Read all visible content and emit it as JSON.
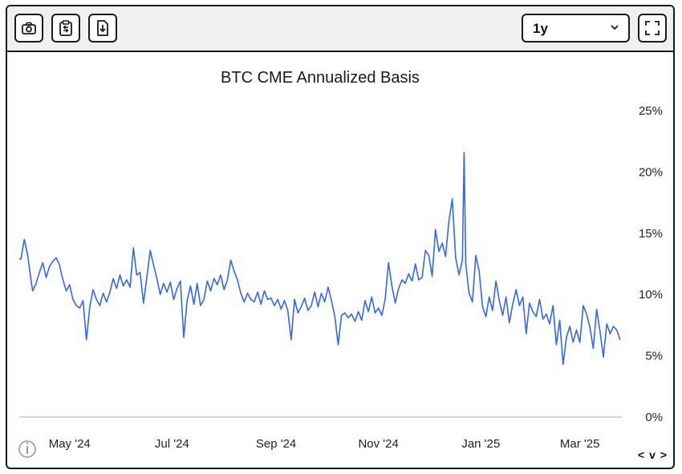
{
  "toolbar": {
    "screenshot_icon": "camera-icon",
    "copy_icon": "clipboard-icon",
    "download_icon": "file-download-icon",
    "range_value": "1y",
    "fullscreen_icon": "fullscreen-icon"
  },
  "nav": {
    "prev": "<",
    "down": "v",
    "next": ">"
  },
  "colors": {
    "line": "#3366ff",
    "axis": "#bdbdbd",
    "text": "#222222"
  },
  "chart_data": {
    "type": "line",
    "title": "BTC CME Annualized Basis",
    "xlabel": "",
    "ylabel": "",
    "x_ticks": [
      "May '24",
      "Jul '24",
      "Sep '24",
      "Nov '24",
      "Jan '25",
      "Mar '25"
    ],
    "y_ticks": [
      "25%",
      "20%",
      "15%",
      "10%",
      "5%",
      "0%"
    ],
    "ylim": [
      0,
      25
    ],
    "xlim": [
      "2024-04-01",
      "2025-03-26"
    ],
    "grid": false,
    "legend": "none",
    "y_axis_side": "right",
    "series": [
      {
        "values": [
          [
            "2024-04-01",
            12.9
          ],
          [
            "2024-04-02",
            12.9
          ],
          [
            "2024-04-04",
            14.5
          ],
          [
            "2024-04-06",
            13.2
          ],
          [
            "2024-04-08",
            11.2
          ],
          [
            "2024-04-09",
            10.3
          ],
          [
            "2024-04-11",
            10.9
          ],
          [
            "2024-04-13",
            11.8
          ],
          [
            "2024-04-15",
            12.6
          ],
          [
            "2024-04-17",
            11.4
          ],
          [
            "2024-04-19",
            12.3
          ],
          [
            "2024-04-21",
            12.7
          ],
          [
            "2024-04-23",
            13.0
          ],
          [
            "2024-04-25",
            12.4
          ],
          [
            "2024-04-27",
            11.2
          ],
          [
            "2024-04-29",
            10.3
          ],
          [
            "2024-05-01",
            10.8
          ],
          [
            "2024-05-03",
            9.6
          ],
          [
            "2024-05-05",
            9.1
          ],
          [
            "2024-05-07",
            8.9
          ],
          [
            "2024-05-09",
            9.5
          ],
          [
            "2024-05-11",
            6.3
          ],
          [
            "2024-05-13",
            9.0
          ],
          [
            "2024-05-15",
            10.4
          ],
          [
            "2024-05-17",
            9.6
          ],
          [
            "2024-05-19",
            9.1
          ],
          [
            "2024-05-21",
            10.1
          ],
          [
            "2024-05-23",
            9.4
          ],
          [
            "2024-05-25",
            10.2
          ],
          [
            "2024-05-27",
            11.3
          ],
          [
            "2024-05-29",
            10.5
          ],
          [
            "2024-05-31",
            11.6
          ],
          [
            "2024-06-02",
            10.7
          ],
          [
            "2024-06-04",
            11.2
          ],
          [
            "2024-06-06",
            10.6
          ],
          [
            "2024-06-08",
            13.8
          ],
          [
            "2024-06-10",
            11.6
          ],
          [
            "2024-06-12",
            11.8
          ],
          [
            "2024-06-14",
            9.3
          ],
          [
            "2024-06-16",
            11.4
          ],
          [
            "2024-06-18",
            13.6
          ],
          [
            "2024-06-20",
            12.4
          ],
          [
            "2024-06-22",
            11.3
          ],
          [
            "2024-06-24",
            10.0
          ],
          [
            "2024-06-26",
            10.9
          ],
          [
            "2024-06-28",
            10.2
          ],
          [
            "2024-06-30",
            11.0
          ],
          [
            "2024-07-02",
            9.6
          ],
          [
            "2024-07-04",
            10.5
          ],
          [
            "2024-07-06",
            11.1
          ],
          [
            "2024-07-08",
            6.5
          ],
          [
            "2024-07-10",
            9.5
          ],
          [
            "2024-07-12",
            10.7
          ],
          [
            "2024-07-14",
            9.2
          ],
          [
            "2024-07-16",
            10.9
          ],
          [
            "2024-07-18",
            9.1
          ],
          [
            "2024-07-20",
            9.6
          ],
          [
            "2024-07-22",
            11.1
          ],
          [
            "2024-07-24",
            10.3
          ],
          [
            "2024-07-26",
            11.3
          ],
          [
            "2024-07-28",
            10.8
          ],
          [
            "2024-07-30",
            11.6
          ],
          [
            "2024-08-01",
            10.4
          ],
          [
            "2024-08-03",
            11.2
          ],
          [
            "2024-08-05",
            12.8
          ],
          [
            "2024-08-07",
            11.9
          ],
          [
            "2024-08-09",
            11.2
          ],
          [
            "2024-08-11",
            10.1
          ],
          [
            "2024-08-13",
            9.4
          ],
          [
            "2024-08-15",
            10.1
          ],
          [
            "2024-08-17",
            9.6
          ],
          [
            "2024-08-19",
            9.4
          ],
          [
            "2024-08-21",
            10.2
          ],
          [
            "2024-08-23",
            9.2
          ],
          [
            "2024-08-25",
            10.3
          ],
          [
            "2024-08-27",
            9.6
          ],
          [
            "2024-08-29",
            9.7
          ],
          [
            "2024-08-31",
            9.1
          ],
          [
            "2024-09-02",
            9.6
          ],
          [
            "2024-09-04",
            8.8
          ],
          [
            "2024-09-06",
            9.5
          ],
          [
            "2024-09-08",
            8.7
          ],
          [
            "2024-09-10",
            6.3
          ],
          [
            "2024-09-12",
            9.6
          ],
          [
            "2024-09-14",
            8.5
          ],
          [
            "2024-09-16",
            9.0
          ],
          [
            "2024-09-18",
            9.7
          ],
          [
            "2024-09-20",
            8.7
          ],
          [
            "2024-09-22",
            9.1
          ],
          [
            "2024-09-24",
            10.2
          ],
          [
            "2024-09-26",
            9.0
          ],
          [
            "2024-09-28",
            10.1
          ],
          [
            "2024-09-30",
            9.4
          ],
          [
            "2024-10-02",
            10.6
          ],
          [
            "2024-10-04",
            9.5
          ],
          [
            "2024-10-06",
            8.2
          ],
          [
            "2024-10-08",
            5.9
          ],
          [
            "2024-10-10",
            8.3
          ],
          [
            "2024-10-12",
            8.5
          ],
          [
            "2024-10-14",
            8.1
          ],
          [
            "2024-10-16",
            8.4
          ],
          [
            "2024-10-18",
            7.8
          ],
          [
            "2024-10-20",
            8.6
          ],
          [
            "2024-10-22",
            7.9
          ],
          [
            "2024-10-24",
            9.5
          ],
          [
            "2024-10-26",
            8.6
          ],
          [
            "2024-10-28",
            9.8
          ],
          [
            "2024-10-30",
            8.5
          ],
          [
            "2024-11-01",
            8.9
          ],
          [
            "2024-11-03",
            8.3
          ],
          [
            "2024-11-05",
            9.6
          ],
          [
            "2024-11-07",
            12.6
          ],
          [
            "2024-11-09",
            10.7
          ],
          [
            "2024-11-11",
            9.3
          ],
          [
            "2024-11-13",
            10.5
          ],
          [
            "2024-11-15",
            11.2
          ],
          [
            "2024-11-17",
            10.9
          ],
          [
            "2024-11-19",
            11.7
          ],
          [
            "2024-11-21",
            11.1
          ],
          [
            "2024-11-23",
            12.5
          ],
          [
            "2024-11-25",
            11.2
          ],
          [
            "2024-11-27",
            11.4
          ],
          [
            "2024-11-29",
            13.6
          ],
          [
            "2024-12-01",
            13.2
          ],
          [
            "2024-12-03",
            11.5
          ],
          [
            "2024-12-05",
            15.3
          ],
          [
            "2024-12-07",
            13.5
          ],
          [
            "2024-12-09",
            14.2
          ],
          [
            "2024-12-11",
            13.1
          ],
          [
            "2024-12-13",
            16.0
          ],
          [
            "2024-12-15",
            17.8
          ],
          [
            "2024-12-17",
            13.0
          ],
          [
            "2024-12-19",
            11.6
          ],
          [
            "2024-12-21",
            12.8
          ],
          [
            "2024-12-22",
            21.6
          ],
          [
            "2024-12-23",
            12.5
          ],
          [
            "2024-12-25",
            10.1
          ],
          [
            "2024-12-27",
            9.4
          ],
          [
            "2024-12-29",
            13.2
          ],
          [
            "2024-12-31",
            11.9
          ],
          [
            "2025-01-02",
            9.0
          ],
          [
            "2025-01-04",
            8.2
          ],
          [
            "2025-01-06",
            9.8
          ],
          [
            "2025-01-08",
            8.7
          ],
          [
            "2025-01-10",
            11.1
          ],
          [
            "2025-01-12",
            9.5
          ],
          [
            "2025-01-14",
            8.3
          ],
          [
            "2025-01-16",
            9.8
          ],
          [
            "2025-01-18",
            7.7
          ],
          [
            "2025-01-20",
            9.2
          ],
          [
            "2025-01-22",
            10.4
          ],
          [
            "2025-01-24",
            9.1
          ],
          [
            "2025-01-26",
            9.8
          ],
          [
            "2025-01-28",
            6.8
          ],
          [
            "2025-01-30",
            9.3
          ],
          [
            "2025-02-01",
            8.6
          ],
          [
            "2025-02-03",
            8.2
          ],
          [
            "2025-02-05",
            9.6
          ],
          [
            "2025-02-07",
            8.0
          ],
          [
            "2025-02-09",
            8.4
          ],
          [
            "2025-02-11",
            7.6
          ],
          [
            "2025-02-13",
            9.1
          ],
          [
            "2025-02-15",
            5.9
          ],
          [
            "2025-02-17",
            7.9
          ],
          [
            "2025-02-19",
            4.3
          ],
          [
            "2025-02-21",
            6.5
          ],
          [
            "2025-02-23",
            7.4
          ],
          [
            "2025-02-25",
            6.1
          ],
          [
            "2025-02-27",
            7.1
          ],
          [
            "2025-03-01",
            6.1
          ],
          [
            "2025-03-03",
            9.1
          ],
          [
            "2025-03-05",
            8.4
          ],
          [
            "2025-03-07",
            7.3
          ],
          [
            "2025-03-09",
            5.6
          ],
          [
            "2025-03-11",
            8.8
          ],
          [
            "2025-03-13",
            7.0
          ],
          [
            "2025-03-15",
            4.9
          ],
          [
            "2025-03-17",
            7.6
          ],
          [
            "2025-03-19",
            6.8
          ],
          [
            "2025-03-21",
            7.4
          ],
          [
            "2025-03-23",
            7.1
          ],
          [
            "2025-03-25",
            6.3
          ]
        ]
      }
    ]
  }
}
